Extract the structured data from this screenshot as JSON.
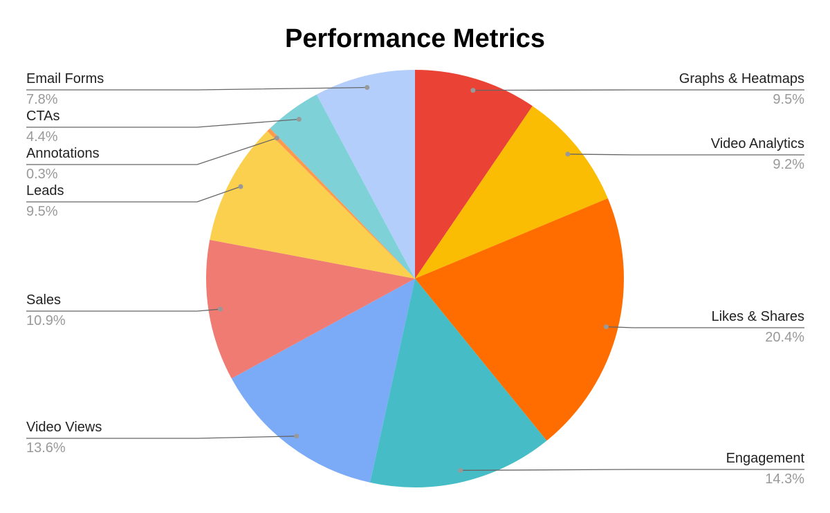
{
  "chart_data": {
    "type": "pie",
    "title": "Performance Metrics",
    "categories": [
      "Graphs & Heatmaps",
      "Video Analytics",
      "Likes & Shares",
      "Engagement",
      "Video Views",
      "Sales",
      "Leads",
      "Annotations",
      "CTAs",
      "Email Forms"
    ],
    "values": [
      9.5,
      9.2,
      20.4,
      14.3,
      13.6,
      10.9,
      9.5,
      0.3,
      4.4,
      7.8
    ],
    "value_labels": [
      "9.5%",
      "9.2%",
      "20.4%",
      "14.3%",
      "13.6%",
      "10.9%",
      "9.5%",
      "0.3%",
      "4.4%",
      "7.8%"
    ],
    "colors": [
      "#ea4335",
      "#fbbc04",
      "#ff6d01",
      "#46bdc6",
      "#7baaf7",
      "#f07b72",
      "#fcd04f",
      "#ff994d",
      "#7ed1d7",
      "#b3cefb"
    ]
  }
}
